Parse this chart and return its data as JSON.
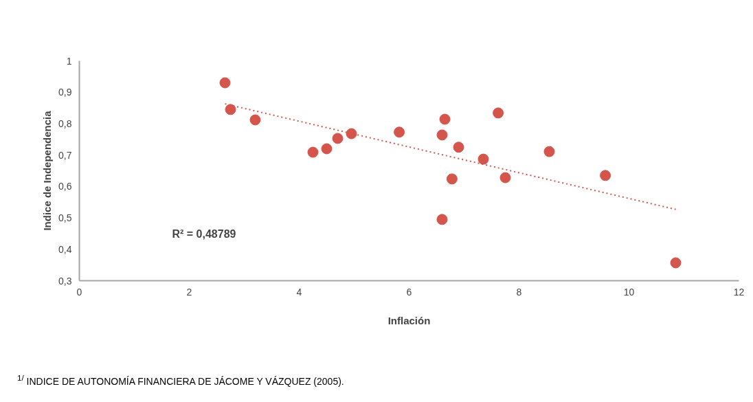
{
  "chart_data": {
    "type": "scatter",
    "xlabel": "Inflación",
    "ylabel": "Indice de Independencia",
    "x": [
      2.65,
      2.75,
      3.2,
      4.25,
      4.5,
      4.7,
      4.95,
      5.82,
      6.6,
      6.65,
      6.6,
      6.78,
      6.9,
      7.35,
      7.62,
      7.75,
      8.55,
      9.57,
      10.85
    ],
    "series": [
      {
        "color": "#d4554c",
        "values": [
          0.93,
          0.845,
          0.812,
          0.709,
          0.72,
          0.753,
          0.768,
          0.773,
          0.764,
          0.814,
          0.495,
          0.624,
          0.725,
          0.687,
          0.834,
          0.628,
          0.711,
          0.635,
          0.357
        ]
      },
      {
        "type": "line",
        "color": "#d4554c",
        "x": [
          2.65,
          10.85
        ],
        "values": [
          0.863,
          0.527
        ],
        "line_style": "dotted",
        "marker": "none"
      }
    ],
    "marker": "circle",
    "xlim": [
      0,
      12
    ],
    "xticks": [
      0,
      2,
      4,
      6,
      8,
      10,
      12
    ],
    "ylim": [
      0.3,
      1
    ],
    "yticks": [
      {
        "value": 0.3,
        "label": "0,3"
      },
      {
        "value": 0.4,
        "label": "0,4"
      },
      {
        "value": 0.5,
        "label": "0,5"
      },
      {
        "value": 0.6,
        "label": "0,6"
      },
      {
        "value": 0.7,
        "label": "0,7"
      },
      {
        "value": 0.8,
        "label": "0,8"
      },
      {
        "value": 0.9,
        "label": "0,9"
      },
      1
    ],
    "grid": false,
    "annotations": [
      "R² = 0,48789",
      "$^{1/}$ INDICE DE AUTONOMÍA FINANCIERA DE JÁCOME Y VÁZQUEZ (2005)."
    ]
  }
}
